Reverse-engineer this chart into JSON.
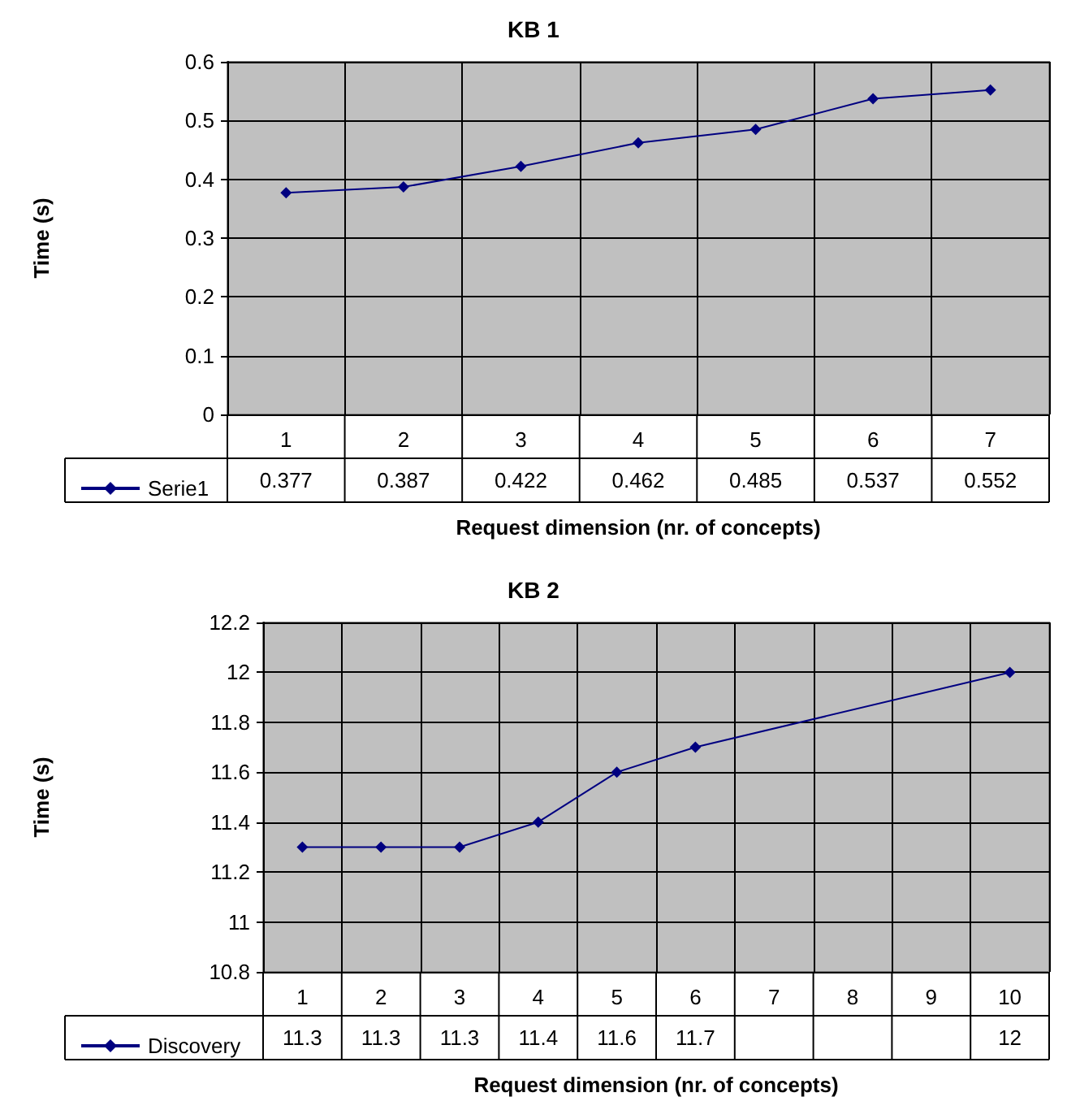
{
  "chart_data": [
    {
      "type": "line",
      "title": "KB 1",
      "xlabel": "Request dimension (nr. of concepts)",
      "ylabel": "Time (s)",
      "categories": [
        "1",
        "2",
        "3",
        "4",
        "5",
        "6",
        "7"
      ],
      "series": [
        {
          "name": "Serie1",
          "color": "#000080",
          "values": [
            0.377,
            0.387,
            0.422,
            0.462,
            0.485,
            0.537,
            0.552
          ]
        }
      ],
      "ylim": [
        0,
        0.6
      ],
      "yticks": [
        0,
        0.1,
        0.2,
        0.3,
        0.4,
        0.5,
        0.6
      ],
      "grid": true,
      "legend": "bottom",
      "marker": "diamond",
      "line_style": "solid",
      "data_labels": true
    },
    {
      "type": "line",
      "title": "KB 2",
      "xlabel": "Request dimension (nr. of concepts)",
      "ylabel": "Time (s)",
      "categories": [
        "1",
        "2",
        "3",
        "4",
        "5",
        "6",
        "7",
        "8",
        "9",
        "10"
      ],
      "series": [
        {
          "name": "Discovery",
          "color": "#000080",
          "values": [
            11.3,
            11.3,
            11.3,
            11.4,
            11.6,
            11.7,
            null,
            null,
            null,
            12
          ]
        }
      ],
      "ylim": [
        10.8,
        12.2
      ],
      "yticks": [
        10.8,
        11,
        11.2,
        11.4,
        11.6,
        11.8,
        12,
        12.2
      ],
      "grid": true,
      "legend": "bottom",
      "marker": "diamond",
      "line_style": "solid",
      "data_labels": true
    }
  ]
}
